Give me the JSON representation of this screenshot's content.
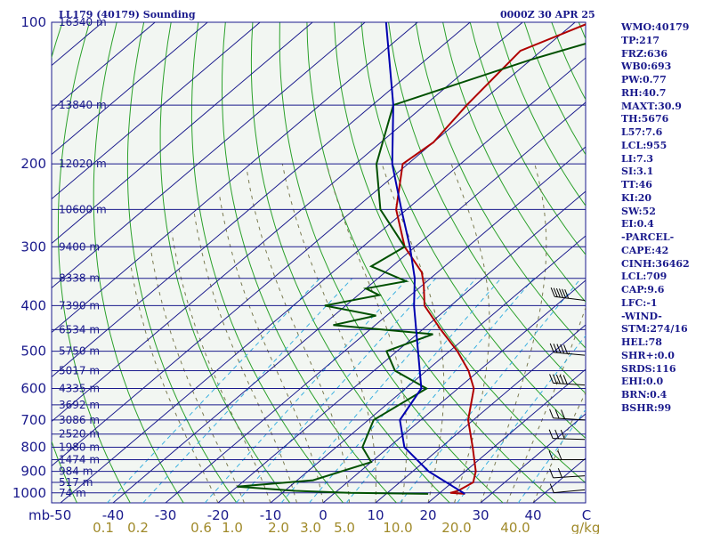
{
  "header": {
    "station": "LL179 (40179) Sounding",
    "time": "0000Z 30 APR 25"
  },
  "indices": [
    "WMO:40179",
    "TP:217",
    "FRZ:636",
    "WB0:693",
    "PW:0.77",
    "RH:40.7",
    "MAXT:30.9",
    "TH:5676",
    "L57:7.6",
    "LCL:955",
    "LI:7.3",
    "SI:3.1",
    "TT:46",
    "KI:20",
    "SW:52",
    "EI:0.4",
    "-PARCEL-",
    "CAPE:42",
    "CINH:36462",
    "LCL:709",
    "CAP:9.6",
    "LFC:-1",
    "-WIND-",
    "STM:274/16",
    "HEL:78",
    "SHR+:0.0",
    "SRDS:116",
    "EHI:0.0",
    "BRN:0.4",
    "BSHR:99"
  ],
  "colors": {
    "isobar": "#1a1a8c",
    "isotherm": "#1a1a8c",
    "dry_adiabat": "#2aa02a",
    "moist_adiabat": "#7a7a50",
    "mixing_ratio": "#3ab0e0",
    "temperature": "#b00000",
    "dewpoint": "#005000",
    "parcel": "#0000b0",
    "wind": "#000000"
  },
  "chart_data": {
    "type": "line",
    "diagram": "skew-T log-p",
    "x_unit_label": "C",
    "y_unit_label": "mb",
    "pressure_levels": [
      100,
      200,
      300,
      400,
      500,
      600,
      700,
      800,
      900,
      1000
    ],
    "pressure_range": [
      100,
      1050
    ],
    "temperature_ticks": [
      -50,
      -40,
      -30,
      -20,
      -10,
      0,
      10,
      20,
      30,
      40
    ],
    "temperature_tick_labels": [
      "-50",
      "-40",
      "-30",
      "-20",
      "-10",
      "0",
      "10",
      "20",
      "30",
      "40"
    ],
    "height_levels": [
      {
        "p": 100,
        "label": "16340 m"
      },
      {
        "p": 150,
        "label": "13840 m"
      },
      {
        "p": 200,
        "label": "12020 m"
      },
      {
        "p": 250,
        "label": "10600 m"
      },
      {
        "p": 300,
        "label": "9400 m"
      },
      {
        "p": 350,
        "label": "8338 m"
      },
      {
        "p": 400,
        "label": "7390 m"
      },
      {
        "p": 450,
        "label": "6534 m"
      },
      {
        "p": 500,
        "label": "5750 m"
      },
      {
        "p": 550,
        "label": "5017 m"
      },
      {
        "p": 600,
        "label": "4335 m"
      },
      {
        "p": 650,
        "label": "3692 m"
      },
      {
        "p": 700,
        "label": "3086 m"
      },
      {
        "p": 750,
        "label": "2520 m"
      },
      {
        "p": 800,
        "label": "1980 m"
      },
      {
        "p": 850,
        "label": "1474 m"
      },
      {
        "p": 900,
        "label": "984 m"
      },
      {
        "p": 950,
        "label": "517 m"
      },
      {
        "p": 1000,
        "label": "74 m"
      }
    ],
    "mixing_ratio_labels": [
      "0.1",
      "0.2",
      "0.6",
      "1.0",
      "2.0",
      "3.0",
      "5.0",
      "10.0",
      "20.0",
      "40.0",
      "g/kg"
    ],
    "mixing_ratio_values": [
      0.1,
      0.2,
      0.6,
      1.0,
      2.0,
      3.0,
      5.0,
      10.0,
      20.0,
      40.0
    ],
    "series": [
      {
        "role": "temperature",
        "points": [
          {
            "p": 100,
            "t": -57
          },
          {
            "p": 115,
            "t": -64
          },
          {
            "p": 150,
            "t": -62
          },
          {
            "p": 180,
            "t": -60
          },
          {
            "p": 200,
            "t": -61
          },
          {
            "p": 250,
            "t": -52
          },
          {
            "p": 300,
            "t": -42
          },
          {
            "p": 340,
            "t": -33
          },
          {
            "p": 360,
            "t": -30
          },
          {
            "p": 400,
            "t": -25
          },
          {
            "p": 450,
            "t": -16.5
          },
          {
            "p": 500,
            "t": -8.5
          },
          {
            "p": 550,
            "t": -2
          },
          {
            "p": 600,
            "t": 3
          },
          {
            "p": 700,
            "t": 9
          },
          {
            "p": 800,
            "t": 16
          },
          {
            "p": 900,
            "t": 22
          },
          {
            "p": 950,
            "t": 24
          },
          {
            "p": 990,
            "t": 23
          },
          {
            "p": 1000,
            "t": 22
          },
          {
            "p": 1005,
            "t": 25
          }
        ]
      },
      {
        "role": "dewpoint",
        "points": [
          {
            "p": 100,
            "t": -44
          },
          {
            "p": 120,
            "t": -60
          },
          {
            "p": 150,
            "t": -76
          },
          {
            "p": 200,
            "t": -66
          },
          {
            "p": 250,
            "t": -55
          },
          {
            "p": 300,
            "t": -42
          },
          {
            "p": 330,
            "t": -44
          },
          {
            "p": 355,
            "t": -34
          },
          {
            "p": 368,
            "t": -40
          },
          {
            "p": 380,
            "t": -36
          },
          {
            "p": 400,
            "t": -44
          },
          {
            "p": 420,
            "t": -32
          },
          {
            "p": 440,
            "t": -38
          },
          {
            "p": 460,
            "t": -17
          },
          {
            "p": 500,
            "t": -22
          },
          {
            "p": 550,
            "t": -16
          },
          {
            "p": 600,
            "t": -6
          },
          {
            "p": 700,
            "t": -9
          },
          {
            "p": 800,
            "t": -5
          },
          {
            "p": 860,
            "t": 0
          },
          {
            "p": 940,
            "t": -7
          },
          {
            "p": 970,
            "t": -20
          },
          {
            "p": 990,
            "t": -8
          },
          {
            "p": 1000,
            "t": 3
          },
          {
            "p": 1005,
            "t": 18
          }
        ]
      },
      {
        "role": "parcel",
        "points": [
          {
            "p": 1005,
            "t": 25
          },
          {
            "p": 900,
            "t": 13
          },
          {
            "p": 800,
            "t": 3
          },
          {
            "p": 700,
            "t": -4
          },
          {
            "p": 600,
            "t": -7
          },
          {
            "p": 500,
            "t": -16
          },
          {
            "p": 400,
            "t": -27
          },
          {
            "p": 350,
            "t": -33
          },
          {
            "p": 300,
            "t": -41
          },
          {
            "p": 250,
            "t": -51
          },
          {
            "p": 200,
            "t": -63
          },
          {
            "p": 150,
            "t": -76
          },
          {
            "p": 100,
            "t": -96
          }
        ]
      }
    ],
    "wind_barbs": [
      {
        "p": 390,
        "dir": 290,
        "spd": 60
      },
      {
        "p": 510,
        "dir": 285,
        "spd": 50
      },
      {
        "p": 590,
        "dir": 280,
        "spd": 45
      },
      {
        "p": 700,
        "dir": 280,
        "spd": 30
      },
      {
        "p": 770,
        "dir": 275,
        "spd": 25
      },
      {
        "p": 850,
        "dir": 270,
        "spd": 20
      },
      {
        "p": 920,
        "dir": 260,
        "spd": 15
      },
      {
        "p": 985,
        "dir": 255,
        "spd": 10
      }
    ]
  }
}
